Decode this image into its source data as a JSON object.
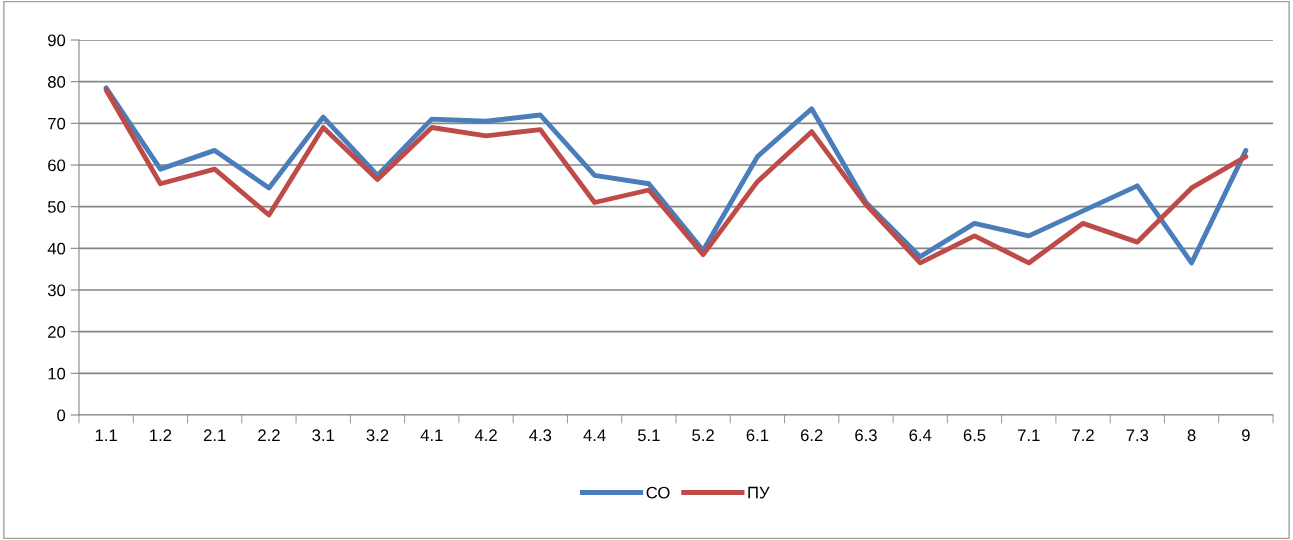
{
  "chart_data": {
    "type": "line",
    "categories": [
      "1.1",
      "1.2",
      "2.1",
      "2.2",
      "3.1",
      "3.2",
      "4.1",
      "4.2",
      "4.3",
      "4.4",
      "5.1",
      "5.2",
      "6.1",
      "6.2",
      "6.3",
      "6.4",
      "6.5",
      "7.1",
      "7.2",
      "7.3",
      "8",
      "9"
    ],
    "series": [
      {
        "name": "СО",
        "color": "#4a7ebb",
        "values": [
          78.5,
          59,
          63.5,
          54.5,
          71.5,
          57.5,
          71,
          70.5,
          72,
          57.5,
          55.5,
          39.5,
          62,
          73.5,
          51,
          38,
          46,
          43,
          49,
          55,
          36.5,
          63.5
        ]
      },
      {
        "name": "ПУ",
        "color": "#be4b48",
        "values": [
          78,
          55.5,
          59,
          48,
          69,
          56.5,
          69,
          67,
          68.5,
          51,
          54,
          38.5,
          56,
          68,
          50.5,
          36.5,
          43,
          36.5,
          46,
          41.5,
          54.5,
          62
        ]
      }
    ],
    "ylim": [
      0,
      90
    ],
    "yticks": [
      0,
      10,
      20,
      30,
      40,
      50,
      60,
      70,
      80,
      90
    ],
    "grid": "y",
    "legend": "bottom",
    "marker": "none",
    "line_style": "solid"
  }
}
